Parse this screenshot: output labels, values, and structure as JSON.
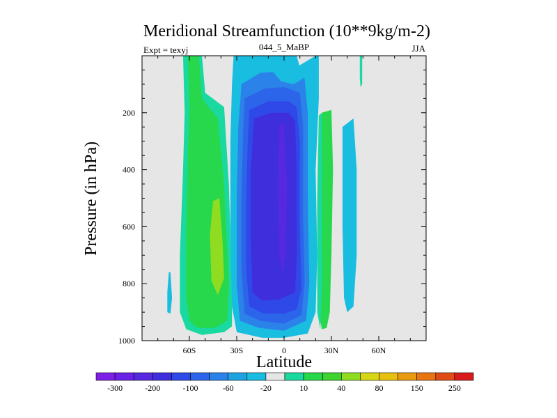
{
  "chart_data": {
    "type": "filled-contour",
    "title": "Meridional Streamfunction (10**9kg/m-2)",
    "left_subtitle": "Expt = texyj",
    "center_subtitle": "044_5_MaBP",
    "right_subtitle": "JJA",
    "xlabel": "Latitude",
    "ylabel": "Pressure (in hPa)",
    "xlim": [
      -90,
      90
    ],
    "ylim": [
      1000,
      0
    ],
    "x_ticks": [
      {
        "value": -60,
        "label": "60S"
      },
      {
        "value": -30,
        "label": "30S"
      },
      {
        "value": 0,
        "label": "0"
      },
      {
        "value": 30,
        "label": "30N"
      },
      {
        "value": 60,
        "label": "60N"
      }
    ],
    "y_ticks": [
      {
        "value": 200,
        "label": "200"
      },
      {
        "value": 400,
        "label": "400"
      },
      {
        "value": 600,
        "label": "600"
      },
      {
        "value": 800,
        "label": "800"
      },
      {
        "value": 1000,
        "label": "1000"
      }
    ],
    "background_color": "#e6e6e6",
    "colorbar": {
      "colors": [
        "#7d1fe6",
        "#6a22e6",
        "#5628e0",
        "#3f2edb",
        "#2f48e8",
        "#2c64ea",
        "#2b82e8",
        "#1ea3e0",
        "#19bde0",
        "#e6e6e6",
        "#1ad9a0",
        "#27d84c",
        "#3fd430",
        "#90dc20",
        "#d6d616",
        "#e8c010",
        "#e89a10",
        "#e87412",
        "#e04a16",
        "#d81a1a"
      ],
      "labels": [
        {
          "after_box": 1,
          "text": "-300"
        },
        {
          "after_box": 3,
          "text": "-200"
        },
        {
          "after_box": 5,
          "text": "-100"
        },
        {
          "after_box": 7,
          "text": "-60"
        },
        {
          "after_box": 9,
          "text": "-20"
        },
        {
          "after_box": 11,
          "text": "10"
        },
        {
          "after_box": 13,
          "text": "40"
        },
        {
          "after_box": 15,
          "text": "80"
        },
        {
          "after_box": 17,
          "text": "150"
        },
        {
          "after_box": 19,
          "text": "250"
        }
      ]
    },
    "regions": [
      {
        "name": "sh-cell-outer",
        "level": 10,
        "color": "#1ad9a0",
        "points": [
          [
            -64,
            0
          ],
          [
            -52,
            0
          ],
          [
            -50,
            130
          ],
          [
            -38,
            180
          ],
          [
            -35,
            450
          ],
          [
            -33,
            800
          ],
          [
            -33,
            950
          ],
          [
            -38,
            970
          ],
          [
            -52,
            980
          ],
          [
            -62,
            960
          ],
          [
            -66,
            900
          ],
          [
            -66,
            700
          ],
          [
            -64,
            400
          ],
          [
            -63,
            200
          ]
        ]
      },
      {
        "name": "sh-cell-inner",
        "level": 40,
        "color": "#27d84c",
        "points": [
          [
            -61,
            0
          ],
          [
            -54,
            0
          ],
          [
            -52,
            150
          ],
          [
            -42,
            220
          ],
          [
            -38,
            450
          ],
          [
            -35,
            800
          ],
          [
            -36,
            930
          ],
          [
            -44,
            955
          ],
          [
            -55,
            955
          ],
          [
            -60,
            930
          ],
          [
            -62,
            850
          ],
          [
            -62,
            600
          ],
          [
            -61,
            350
          ],
          [
            -60,
            180
          ]
        ]
      },
      {
        "name": "sh-cell-core",
        "level": 80,
        "color": "#90dc20",
        "points": [
          [
            -45,
            510
          ],
          [
            -41,
            500
          ],
          [
            -39,
            650
          ],
          [
            -38,
            780
          ],
          [
            -42,
            840
          ],
          [
            -46,
            790
          ],
          [
            -47,
            630
          ]
        ]
      },
      {
        "name": "sh-small-cell",
        "level": -20,
        "color": "#19bde0",
        "points": [
          [
            -73,
            760
          ],
          [
            -72,
            760
          ],
          [
            -71,
            850
          ],
          [
            -72,
            905
          ],
          [
            -74,
            900
          ],
          [
            -74,
            830
          ]
        ]
      },
      {
        "name": "eq-cell-level1",
        "level": -20,
        "color": "#19bde0",
        "points": [
          [
            -32,
            0
          ],
          [
            -2,
            0
          ],
          [
            8,
            40
          ],
          [
            20,
            0
          ],
          [
            22,
            0
          ],
          [
            22,
            150
          ],
          [
            20,
            400
          ],
          [
            21,
            700
          ],
          [
            20,
            900
          ],
          [
            15,
            975
          ],
          [
            0,
            990
          ],
          [
            -14,
            990
          ],
          [
            -30,
            970
          ],
          [
            -33,
            880
          ],
          [
            -34,
            600
          ],
          [
            -34,
            300
          ],
          [
            -33,
            100
          ]
        ]
      },
      {
        "name": "eq-cell-level2",
        "level": -60,
        "color": "#2b82e8",
        "points": [
          [
            -27,
            100
          ],
          [
            -15,
            60
          ],
          [
            0,
            55
          ],
          [
            13,
            80
          ],
          [
            15,
            200
          ],
          [
            15,
            500
          ],
          [
            16,
            800
          ],
          [
            14,
            930
          ],
          [
            0,
            965
          ],
          [
            -16,
            955
          ],
          [
            -28,
            930
          ],
          [
            -30,
            800
          ],
          [
            -30,
            500
          ],
          [
            -29,
            250
          ]
        ]
      },
      {
        "name": "eq-cell-level3",
        "level": -100,
        "color": "#2c64ea",
        "points": [
          [
            -25,
            150
          ],
          [
            -12,
            115
          ],
          [
            0,
            110
          ],
          [
            10,
            130
          ],
          [
            12,
            250
          ],
          [
            12,
            550
          ],
          [
            13,
            800
          ],
          [
            11,
            910
          ],
          [
            0,
            940
          ],
          [
            -15,
            930
          ],
          [
            -25,
            905
          ],
          [
            -27,
            750
          ],
          [
            -27,
            500
          ],
          [
            -26,
            280
          ]
        ]
      },
      {
        "name": "eq-cell-level4",
        "level": -150,
        "color": "#2f48e8",
        "points": [
          [
            -22,
            190
          ],
          [
            -10,
            160
          ],
          [
            3,
            160
          ],
          [
            8,
            180
          ],
          [
            10,
            300
          ],
          [
            10,
            600
          ],
          [
            11,
            820
          ],
          [
            8,
            890
          ],
          [
            0,
            905
          ],
          [
            -13,
            905
          ],
          [
            -22,
            880
          ],
          [
            -24,
            750
          ],
          [
            -24,
            500
          ],
          [
            -23,
            300
          ]
        ]
      },
      {
        "name": "eq-cell-level5",
        "level": -200,
        "color": "#3f2edb",
        "points": [
          [
            -19,
            220
          ],
          [
            -8,
            200
          ],
          [
            3,
            200
          ],
          [
            7,
            230
          ],
          [
            8,
            400
          ],
          [
            8,
            700
          ],
          [
            7,
            830
          ],
          [
            -3,
            855
          ],
          [
            -14,
            860
          ],
          [
            -20,
            830
          ],
          [
            -21,
            650
          ],
          [
            -21,
            400
          ]
        ]
      },
      {
        "name": "eq-cell-core",
        "level": -250,
        "color": "#5628e0",
        "points": [
          [
            -3,
            240
          ],
          [
            0,
            240
          ],
          [
            2,
            450
          ],
          [
            1,
            700
          ],
          [
            -1,
            760
          ],
          [
            -3,
            700
          ],
          [
            -4,
            450
          ]
        ]
      },
      {
        "name": "nh-top-inflow",
        "level": -20,
        "color": "#19bde0",
        "points": [
          [
            -8,
            0
          ],
          [
            8,
            0
          ],
          [
            12,
            80
          ],
          [
            6,
            100
          ],
          [
            -2,
            90
          ],
          [
            -8,
            50
          ]
        ]
      },
      {
        "name": "nh-green-strip",
        "level": 40,
        "color": "#27d84c",
        "points": [
          [
            24,
            200
          ],
          [
            30,
            190
          ],
          [
            31,
            400
          ],
          [
            30,
            700
          ],
          [
            29,
            900
          ],
          [
            27,
            955
          ],
          [
            24,
            960
          ],
          [
            22,
            900
          ],
          [
            23,
            600
          ],
          [
            23,
            350
          ]
        ]
      },
      {
        "name": "nh-teal-strip",
        "level": 10,
        "color": "#1ad9a0",
        "points": [
          [
            22,
            210
          ],
          [
            24,
            200
          ],
          [
            24,
            500
          ],
          [
            24,
            800
          ],
          [
            23,
            960
          ],
          [
            21,
            900
          ],
          [
            21,
            500
          ]
        ]
      },
      {
        "name": "nh-cyan-strip",
        "level": -20,
        "color": "#19bde0",
        "points": [
          [
            37,
            250
          ],
          [
            44,
            220
          ],
          [
            46,
            400
          ],
          [
            46,
            700
          ],
          [
            44,
            880
          ],
          [
            40,
            900
          ],
          [
            38,
            850
          ],
          [
            37,
            600
          ]
        ]
      },
      {
        "name": "nh-thin-top",
        "level": 10,
        "color": "#1ad9a0",
        "points": [
          [
            48,
            0
          ],
          [
            49.5,
            0
          ],
          [
            49.5,
            100
          ],
          [
            48.5,
            110
          ],
          [
            48,
            80
          ]
        ]
      }
    ]
  }
}
